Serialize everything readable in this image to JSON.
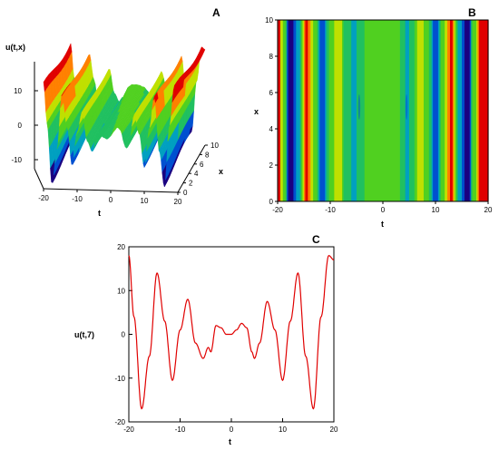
{
  "chart_data": [
    {
      "panel": "A",
      "type": "surface",
      "zlabel": "u(t,x)",
      "xlabel": "t",
      "ylabel": "x",
      "t_ticks": [
        "-20",
        "-10",
        "0",
        "10",
        "20"
      ],
      "x_ticks": [
        "0",
        "2",
        "4",
        "6",
        "8",
        "10"
      ],
      "z_ticks": [
        "10",
        "0",
        "-10"
      ],
      "tlim": [
        -20,
        20
      ],
      "xlim": [
        0,
        10
      ],
      "zlim": [
        -17,
        17
      ],
      "colormap": [
        "#1a0080",
        "#0050d0",
        "#00a0c0",
        "#20c060",
        "#50d020",
        "#c0e000",
        "#ff8000",
        "#e00000"
      ]
    },
    {
      "panel": "B",
      "type": "heatmap",
      "xlabel": "t",
      "ylabel": "x",
      "xlim": [
        -20,
        20
      ],
      "ylim": [
        0,
        10
      ],
      "x_ticks": [
        "-20",
        "-10",
        "0",
        "10",
        "20"
      ],
      "y_ticks": [
        "0",
        "2",
        "4",
        "6",
        "8",
        "10"
      ],
      "colormap": [
        "#1a0080",
        "#0050d0",
        "#00a0c0",
        "#20c060",
        "#50d020",
        "#c0e000",
        "#ff8000",
        "#e00000"
      ]
    },
    {
      "panel": "C",
      "type": "line",
      "xlabel": "t",
      "ylabel": "u(t,7)",
      "xlim": [
        -20,
        20
      ],
      "ylim": [
        -20,
        20
      ],
      "x_ticks": [
        "-20",
        "-10",
        "0",
        "10",
        "20"
      ],
      "y_ticks": [
        "20",
        "10",
        "0",
        "-10",
        "-20"
      ],
      "line_color": "#e00000",
      "series": [
        {
          "x": [
            -20,
            -19,
            -17.5,
            -16,
            -14.5,
            -13,
            -11.5,
            -10,
            -8.5,
            -7,
            -5.5,
            -4.5,
            -4,
            -3,
            -2,
            -1,
            0,
            1,
            2,
            3,
            4,
            4.5,
            5.5,
            7,
            8.5,
            10,
            11.5,
            13,
            14.5,
            16,
            17.5,
            19,
            20
          ],
          "y": [
            18,
            4,
            -17,
            -5,
            14,
            3,
            -10.5,
            1,
            8,
            -2,
            -5.5,
            -3,
            -4,
            2,
            1.5,
            0,
            0,
            1,
            2.5,
            1.5,
            -4,
            -5.5,
            -2,
            7.5,
            1,
            -10.5,
            3,
            14,
            -5,
            -17,
            4,
            18,
            17
          ]
        }
      ]
    }
  ],
  "panels": {
    "a_label": "A",
    "b_label": "B",
    "c_label": "C"
  }
}
